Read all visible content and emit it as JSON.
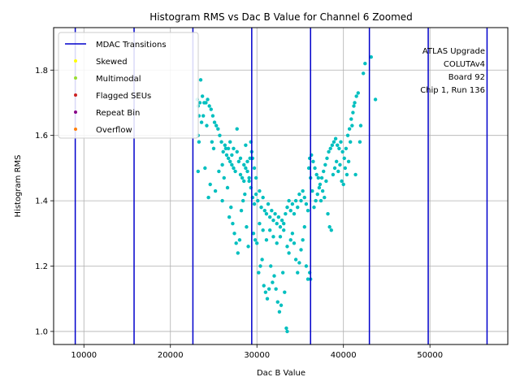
{
  "chart_data": {
    "type": "scatter",
    "title": "Histogram RMS vs Dac B Value for Channel 6 Zoomed",
    "xlabel": "Dac B Value",
    "ylabel": "Histogram RMS",
    "xlim": [
      6500,
      59000
    ],
    "ylim": [
      0.96,
      1.93
    ],
    "x_ticks": [
      10000,
      20000,
      30000,
      40000,
      50000
    ],
    "x_tick_labels": [
      "10000",
      "20000",
      "30000",
      "40000",
      "50000"
    ],
    "y_ticks": [
      1.0,
      1.2,
      1.4,
      1.6,
      1.8
    ],
    "y_tick_labels": [
      "1.0",
      "1.2",
      "1.4",
      "1.6",
      "1.8"
    ],
    "grid": true,
    "legend_position": "top-left",
    "legend": [
      {
        "label": "MDAC Transitions",
        "kind": "line",
        "color": "#0000cc"
      },
      {
        "label": "Skewed",
        "kind": "dot",
        "color": "#ffff00"
      },
      {
        "label": "Multimodal",
        "kind": "dot",
        "color": "#99dd33"
      },
      {
        "label": "Flagged SEUs",
        "kind": "dot",
        "color": "#cc2222"
      },
      {
        "label": "Repeat Bin",
        "kind": "dot",
        "color": "#880088"
      },
      {
        "label": "Overflow",
        "kind": "dot",
        "color": "#ff7f0e"
      }
    ],
    "annotation_lines": [
      "ATLAS Upgrade",
      "COLUTAv4",
      "Board 92",
      "Chip 1, Run 136"
    ],
    "mdac_transitions": [
      9000,
      15800,
      22600,
      29400,
      36200,
      43000,
      49800,
      56600
    ],
    "point_color": "#00bfbf",
    "series": [
      {
        "name": "Channel 6",
        "points": [
          [
            23100,
            1.71
          ],
          [
            23200,
            1.69
          ],
          [
            23300,
            1.66
          ],
          [
            23400,
            1.7
          ],
          [
            23500,
            1.77
          ],
          [
            23600,
            1.64
          ],
          [
            23700,
            1.72
          ],
          [
            23900,
            1.7
          ],
          [
            24100,
            1.7
          ],
          [
            24300,
            1.71
          ],
          [
            24500,
            1.69
          ],
          [
            24700,
            1.68
          ],
          [
            24900,
            1.66
          ],
          [
            25100,
            1.64
          ],
          [
            25300,
            1.63
          ],
          [
            25500,
            1.62
          ],
          [
            25700,
            1.6
          ],
          [
            25900,
            1.58
          ],
          [
            26100,
            1.55
          ],
          [
            26300,
            1.57
          ],
          [
            26500,
            1.54
          ],
          [
            26700,
            1.53
          ],
          [
            26900,
            1.52
          ],
          [
            27100,
            1.54
          ],
          [
            27300,
            1.5
          ],
          [
            27500,
            1.49
          ],
          [
            27700,
            1.55
          ],
          [
            27900,
            1.52
          ],
          [
            28100,
            1.48
          ],
          [
            28300,
            1.47
          ],
          [
            28500,
            1.46
          ],
          [
            28700,
            1.5
          ],
          [
            28900,
            1.49
          ],
          [
            29100,
            1.46
          ],
          [
            29300,
            1.44
          ],
          [
            23200,
            1.6
          ],
          [
            23300,
            1.58
          ],
          [
            23200,
            1.49
          ],
          [
            24000,
            1.5
          ],
          [
            24400,
            1.41
          ],
          [
            24600,
            1.45
          ],
          [
            25200,
            1.43
          ],
          [
            25600,
            1.49
          ],
          [
            26000,
            1.4
          ],
          [
            26200,
            1.47
          ],
          [
            26600,
            1.44
          ],
          [
            26800,
            1.35
          ],
          [
            27000,
            1.38
          ],
          [
            27200,
            1.33
          ],
          [
            27400,
            1.3
          ],
          [
            27600,
            1.27
          ],
          [
            27800,
            1.24
          ],
          [
            28000,
            1.28
          ],
          [
            28200,
            1.37
          ],
          [
            28400,
            1.4
          ],
          [
            28600,
            1.42
          ],
          [
            28800,
            1.32
          ],
          [
            29000,
            1.26
          ],
          [
            26000,
            1.51
          ],
          [
            26400,
            1.56
          ],
          [
            26900,
            1.58
          ],
          [
            27300,
            1.56
          ],
          [
            27700,
            1.62
          ],
          [
            28100,
            1.53
          ],
          [
            28500,
            1.51
          ],
          [
            28900,
            1.52
          ],
          [
            25000,
            1.56
          ],
          [
            24200,
            1.63
          ],
          [
            23800,
            1.66
          ],
          [
            24800,
            1.58
          ],
          [
            29500,
            1.41
          ],
          [
            29700,
            1.39
          ],
          [
            29900,
            1.42
          ],
          [
            30100,
            1.4
          ],
          [
            30300,
            1.43
          ],
          [
            30500,
            1.38
          ],
          [
            30700,
            1.41
          ],
          [
            30900,
            1.37
          ],
          [
            31100,
            1.36
          ],
          [
            31300,
            1.39
          ],
          [
            31500,
            1.35
          ],
          [
            31700,
            1.37
          ],
          [
            31900,
            1.34
          ],
          [
            32100,
            1.36
          ],
          [
            32300,
            1.33
          ],
          [
            32500,
            1.35
          ],
          [
            32700,
            1.32
          ],
          [
            32900,
            1.34
          ],
          [
            33100,
            1.33
          ],
          [
            33300,
            1.36
          ],
          [
            33500,
            1.38
          ],
          [
            33700,
            1.4
          ],
          [
            33900,
            1.37
          ],
          [
            34100,
            1.39
          ],
          [
            34300,
            1.36
          ],
          [
            34500,
            1.4
          ],
          [
            34700,
            1.38
          ],
          [
            34900,
            1.42
          ],
          [
            35100,
            1.4
          ],
          [
            35300,
            1.43
          ],
          [
            35500,
            1.41
          ],
          [
            35700,
            1.39
          ],
          [
            35900,
            1.37
          ],
          [
            29600,
            1.3
          ],
          [
            29800,
            1.28
          ],
          [
            30000,
            1.27
          ],
          [
            30200,
            1.18
          ],
          [
            30400,
            1.2
          ],
          [
            30600,
            1.22
          ],
          [
            30800,
            1.14
          ],
          [
            31000,
            1.12
          ],
          [
            31200,
            1.1
          ],
          [
            31400,
            1.13
          ],
          [
            31600,
            1.2
          ],
          [
            31800,
            1.15
          ],
          [
            32000,
            1.17
          ],
          [
            32200,
            1.13
          ],
          [
            32400,
            1.09
          ],
          [
            32600,
            1.06
          ],
          [
            32800,
            1.08
          ],
          [
            33000,
            1.18
          ],
          [
            33200,
            1.12
          ],
          [
            33400,
            1.01
          ],
          [
            33500,
            1.0
          ],
          [
            33700,
            1.24
          ],
          [
            33900,
            1.28
          ],
          [
            34100,
            1.3
          ],
          [
            34300,
            1.27
          ],
          [
            34500,
            1.22
          ],
          [
            34700,
            1.18
          ],
          [
            34900,
            1.21
          ],
          [
            35100,
            1.25
          ],
          [
            35300,
            1.28
          ],
          [
            35500,
            1.32
          ],
          [
            35700,
            1.2
          ],
          [
            35900,
            1.16
          ],
          [
            29700,
            1.5
          ],
          [
            29900,
            1.47
          ],
          [
            30300,
            1.33
          ],
          [
            30700,
            1.31
          ],
          [
            31100,
            1.28
          ],
          [
            31500,
            1.31
          ],
          [
            31900,
            1.29
          ],
          [
            32300,
            1.27
          ],
          [
            32700,
            1.29
          ],
          [
            33100,
            1.31
          ],
          [
            33500,
            1.26
          ],
          [
            29400,
            1.55
          ],
          [
            29500,
            1.53
          ],
          [
            29300,
            1.58
          ],
          [
            36300,
            1.54
          ],
          [
            36500,
            1.52
          ],
          [
            36700,
            1.5
          ],
          [
            36900,
            1.48
          ],
          [
            37100,
            1.47
          ],
          [
            37300,
            1.45
          ],
          [
            37500,
            1.47
          ],
          [
            37700,
            1.49
          ],
          [
            37900,
            1.51
          ],
          [
            38100,
            1.53
          ],
          [
            38300,
            1.55
          ],
          [
            38500,
            1.56
          ],
          [
            38700,
            1.57
          ],
          [
            38900,
            1.58
          ],
          [
            39100,
            1.59
          ],
          [
            39300,
            1.57
          ],
          [
            39500,
            1.56
          ],
          [
            39700,
            1.58
          ],
          [
            39900,
            1.55
          ],
          [
            40100,
            1.53
          ],
          [
            40300,
            1.56
          ],
          [
            40500,
            1.6
          ],
          [
            40700,
            1.62
          ],
          [
            40900,
            1.65
          ],
          [
            41100,
            1.67
          ],
          [
            41300,
            1.7
          ],
          [
            41500,
            1.72
          ],
          [
            41700,
            1.73
          ],
          [
            36400,
            1.43
          ],
          [
            36600,
            1.38
          ],
          [
            36800,
            1.4
          ],
          [
            37000,
            1.42
          ],
          [
            37200,
            1.44
          ],
          [
            37400,
            1.4
          ],
          [
            37600,
            1.43
          ],
          [
            37800,
            1.41
          ],
          [
            38000,
            1.46
          ],
          [
            38200,
            1.36
          ],
          [
            38400,
            1.32
          ],
          [
            38600,
            1.31
          ],
          [
            38800,
            1.48
          ],
          [
            39000,
            1.5
          ],
          [
            39200,
            1.52
          ],
          [
            39400,
            1.49
          ],
          [
            39600,
            1.51
          ],
          [
            39800,
            1.46
          ],
          [
            40000,
            1.45
          ],
          [
            40200,
            1.5
          ],
          [
            40400,
            1.48
          ],
          [
            40600,
            1.52
          ],
          [
            40800,
            1.58
          ],
          [
            41000,
            1.63
          ],
          [
            41200,
            1.69
          ],
          [
            41400,
            1.48
          ],
          [
            36200,
            1.47
          ],
          [
            36100,
            1.53
          ],
          [
            36000,
            1.5
          ],
          [
            42300,
            1.79
          ],
          [
            42500,
            1.82
          ],
          [
            43200,
            1.84
          ],
          [
            43700,
            1.71
          ],
          [
            42000,
            1.63
          ],
          [
            41900,
            1.58
          ],
          [
            36200,
            1.16
          ],
          [
            36100,
            1.18
          ],
          [
            29200,
            1.53
          ],
          [
            29100,
            1.47
          ],
          [
            28700,
            1.57
          ],
          [
            27100,
            1.51
          ],
          [
            26700,
            1.56
          ]
        ]
      }
    ]
  }
}
